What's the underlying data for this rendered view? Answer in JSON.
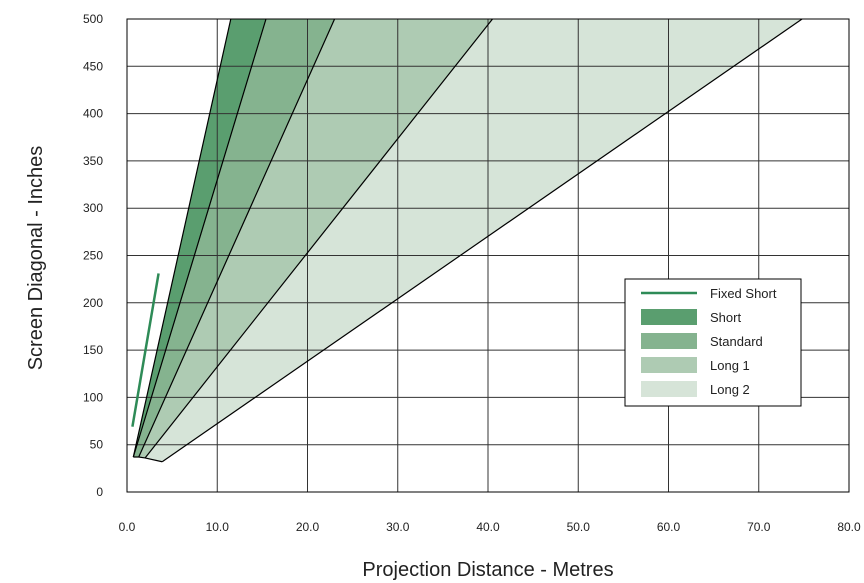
{
  "chart_data": {
    "type": "area",
    "xlabel": "Projection Distance - Metres",
    "ylabel": "Screen Diagonal - Inches",
    "xlim": [
      0,
      80
    ],
    "ylim": [
      0,
      500
    ],
    "x_ticks": [
      "0.0",
      "10.0",
      "20.0",
      "30.0",
      "40.0",
      "50.0",
      "60.0",
      "70.0",
      "80.0"
    ],
    "y_ticks": [
      "0",
      "50",
      "100",
      "150",
      "200",
      "250",
      "300",
      "350",
      "400",
      "450",
      "500"
    ],
    "grid": true,
    "legend_position": "center-right",
    "series": [
      {
        "name": "Fixed Short",
        "kind": "line",
        "color": "#2e8b57",
        "points": [
          [
            0.6,
            69
          ],
          [
            3.5,
            231
          ]
        ]
      },
      {
        "name": "Long 2",
        "kind": "area",
        "color": "#d6e4d8",
        "bounds": {
          "short_throw_line": [
            [
              2.0,
              36
            ],
            [
              40.5,
              500
            ]
          ],
          "long_throw_line": [
            [
              3.9,
              32
            ],
            [
              74.8,
              500
            ]
          ]
        }
      },
      {
        "name": "Long 1",
        "kind": "area",
        "color": "#aecbb3",
        "bounds": {
          "short_throw_line": [
            [
              1.3,
              37
            ],
            [
              23.0,
              500
            ]
          ],
          "long_throw_line": [
            [
              2.0,
              36
            ],
            [
              40.5,
              500
            ]
          ]
        }
      },
      {
        "name": "Standard",
        "kind": "area",
        "color": "#85b38f",
        "bounds": {
          "short_throw_line": [
            [
              0.7,
              37
            ],
            [
              15.4,
              500
            ]
          ],
          "long_throw_line": [
            [
              1.3,
              37
            ],
            [
              23.0,
              500
            ]
          ]
        }
      },
      {
        "name": "Short",
        "kind": "area",
        "color": "#5a9e6f",
        "bounds": {
          "short_throw_line": [
            [
              0.7,
              37
            ],
            [
              11.5,
              500
            ]
          ],
          "long_throw_line": [
            [
              0.7,
              37
            ],
            [
              15.4,
              500
            ]
          ]
        }
      }
    ],
    "legend": [
      "Fixed Short",
      "Short",
      "Standard",
      "Long 1",
      "Long 2"
    ]
  }
}
